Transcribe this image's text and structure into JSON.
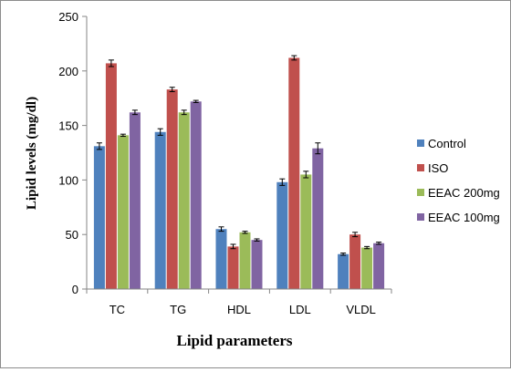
{
  "chart_data": {
    "type": "bar",
    "title": "",
    "xlabel": "Lipid parameters",
    "ylabel": "Lipid levels (mg/dl)",
    "ylim": [
      0,
      250
    ],
    "yticks": [
      "0",
      "50",
      "100",
      "150",
      "200",
      "250"
    ],
    "categories": [
      "TC",
      "TG",
      "HDL",
      "LDL",
      "VLDL"
    ],
    "series": [
      {
        "name": "Control",
        "color": "#4f81bd",
        "values": [
          131,
          144,
          55,
          98,
          32
        ],
        "errors": [
          3,
          3,
          2,
          3,
          1
        ]
      },
      {
        "name": "ISO",
        "color": "#c0504d",
        "values": [
          207,
          183,
          39,
          212,
          50
        ],
        "errors": [
          3,
          2,
          2,
          2,
          2
        ]
      },
      {
        "name": "EEAC 200mg",
        "color": "#9bbb59",
        "values": [
          141,
          162,
          52,
          105,
          38
        ],
        "errors": [
          1,
          2,
          1,
          3,
          1
        ]
      },
      {
        "name": "EEAC 100mg",
        "color": "#8064a2",
        "values": [
          162,
          172,
          45,
          129,
          42
        ],
        "errors": [
          2,
          1,
          1,
          5,
          1
        ]
      }
    ],
    "grid": false,
    "legend_position": "right"
  }
}
